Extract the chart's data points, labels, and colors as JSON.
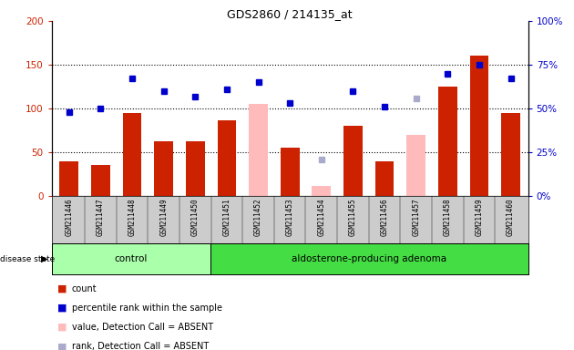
{
  "title": "GDS2860 / 214135_at",
  "samples": [
    "GSM211446",
    "GSM211447",
    "GSM211448",
    "GSM211449",
    "GSM211450",
    "GSM211451",
    "GSM211452",
    "GSM211453",
    "GSM211454",
    "GSM211455",
    "GSM211456",
    "GSM211457",
    "GSM211458",
    "GSM211459",
    "GSM211460"
  ],
  "count_values": [
    40,
    35,
    95,
    63,
    63,
    87,
    null,
    55,
    null,
    80,
    40,
    null,
    125,
    160,
    95
  ],
  "absent_values": [
    null,
    null,
    null,
    null,
    null,
    null,
    105,
    null,
    12,
    null,
    null,
    70,
    null,
    null,
    null
  ],
  "rank_values": [
    48,
    50,
    67,
    60,
    57,
    61,
    65,
    53,
    null,
    60,
    51,
    null,
    70,
    75,
    67
  ],
  "absent_rank_values": [
    null,
    null,
    null,
    null,
    null,
    null,
    null,
    null,
    21,
    null,
    null,
    56,
    null,
    null,
    null
  ],
  "control_count": 5,
  "adenoma_count": 10,
  "ylim_left": [
    0,
    200
  ],
  "ylim_right": [
    0,
    100
  ],
  "yticks_left": [
    0,
    50,
    100,
    150,
    200
  ],
  "yticks_right": [
    0,
    25,
    50,
    75,
    100
  ],
  "ytick_labels_left": [
    "0",
    "50",
    "100",
    "150",
    "200"
  ],
  "ytick_labels_right": [
    "0%",
    "25%",
    "50%",
    "75%",
    "100%"
  ],
  "bar_color_red": "#cc2200",
  "bar_color_pink": "#ffbbbb",
  "dot_color_blue": "#0000cc",
  "dot_color_lightblue": "#aaaacc",
  "label_area_bg": "#cccccc",
  "control_bg": "#aaffaa",
  "adenoma_bg": "#44dd44",
  "disease_state_label": "disease state",
  "control_label": "control",
  "adenoma_label": "aldosterone-producing adenoma",
  "legend_count": "count",
  "legend_rank": "percentile rank within the sample",
  "legend_value_absent": "value, Detection Call = ABSENT",
  "legend_rank_absent": "rank, Detection Call = ABSENT"
}
